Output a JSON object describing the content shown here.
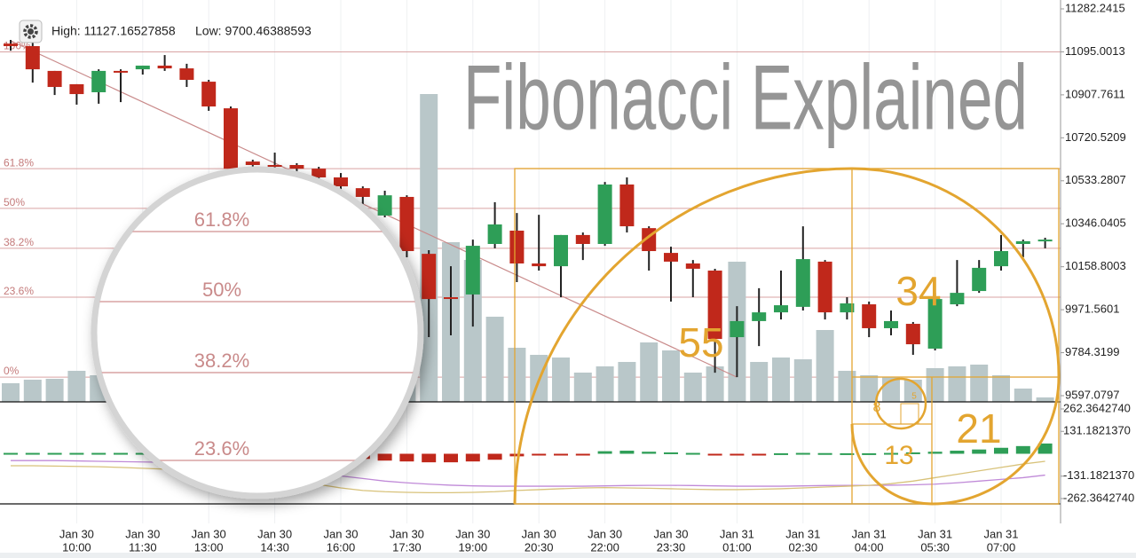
{
  "chart_data": {
    "type": "candlestick",
    "title": "Fibonacci Explained",
    "stats": [
      "High: 11127.16527858",
      "Low: 9700.46388593"
    ],
    "ylim": [
      9597.0797,
      11282.2415
    ],
    "yticks": [
      11282.2415,
      11095.0013,
      10907.7611,
      10720.5209,
      10533.2807,
      10346.0405,
      10158.8003,
      9971.5601,
      9784.3199,
      9597.0797
    ],
    "x_labels": [
      {
        "date": "Jan 30",
        "time": "10:00"
      },
      {
        "date": "Jan 30",
        "time": "11:30"
      },
      {
        "date": "Jan 30",
        "time": "13:00"
      },
      {
        "date": "Jan 30",
        "time": "14:30"
      },
      {
        "date": "Jan 30",
        "time": "16:00"
      },
      {
        "date": "Jan 30",
        "time": "17:30"
      },
      {
        "date": "Jan 30",
        "time": "19:00"
      },
      {
        "date": "Jan 30",
        "time": "20:30"
      },
      {
        "date": "Jan 30",
        "time": "22:00"
      },
      {
        "date": "Jan 30",
        "time": "23:30"
      },
      {
        "date": "Jan 31",
        "time": "01:00"
      },
      {
        "date": "Jan 31",
        "time": "02:30"
      },
      {
        "date": "Jan 31",
        "time": "04:00"
      },
      {
        "date": "Jan 31",
        "time": "05:30"
      },
      {
        "date": "Jan 31",
        "time": "07:00"
      }
    ],
    "up_color": "#2e9e57",
    "down_color": "#c0281b",
    "open": [
      11131,
      11120,
      11012,
      10954,
      10919,
      11012,
      11019,
      11035,
      11023,
      10965,
      10849,
      10617,
      10602,
      10602,
      10586,
      10548,
      10501,
      10382,
      10463,
      10215,
      10026,
      10038,
      10258,
      10316,
      10173,
      10161,
      10297,
      10258,
      10517,
      10327,
      10219,
      10173,
      10142,
      9852,
      9922,
      9960,
      9984,
      10181,
      9960,
      9995,
      9891,
      9910,
      9802,
      9995,
      10053,
      10161,
      10258,
      10273
    ],
    "high": [
      11147,
      11147,
      11012,
      10954,
      11019,
      11019,
      11035,
      11081,
      11043,
      10973,
      10857,
      10625,
      10656,
      10610,
      10594,
      10567,
      10509,
      10490,
      10470,
      10231,
      10161,
      10277,
      10440,
      10393,
      10385,
      10297,
      10308,
      10528,
      10548,
      10335,
      10246,
      10188,
      10150,
      9987,
      10065,
      10142,
      10335,
      10188,
      10026,
      10007,
      9968,
      9918,
      10045,
      10188,
      10188,
      10297,
      10277,
      10285
    ],
    "low": [
      11100,
      10961,
      10907,
      10865,
      10869,
      10876,
      10996,
      11012,
      10942,
      10838,
      10548,
      10586,
      10579,
      10567,
      10509,
      10478,
      10432,
      10374,
      10200,
      9852,
      9860,
      9898,
      10239,
      10092,
      10142,
      10026,
      10188,
      10250,
      10308,
      10142,
      10007,
      10026,
      9697,
      9678,
      9813,
      9929,
      9968,
      9929,
      9929,
      9852,
      9860,
      9775,
      9794,
      9987,
      10045,
      10142,
      10200,
      10239
    ],
    "close": [
      11120,
      11019,
      10942,
      10911,
      11012,
      11010,
      11035,
      11023,
      10973,
      10857,
      10586,
      10602,
      10594,
      10586,
      10548,
      10509,
      10463,
      10470,
      10227,
      10018,
      10022,
      10250,
      10343,
      10173,
      10161,
      10297,
      10258,
      10517,
      10335,
      10227,
      10181,
      10150,
      9844,
      9922,
      9960,
      9991,
      10192,
      9960,
      9999,
      9891,
      9922,
      9821,
      10018,
      10045,
      10154,
      10227,
      10270,
      10277
    ],
    "volume": [
      21,
      25,
      26,
      35,
      30,
      28,
      30,
      28,
      26,
      25,
      30,
      32,
      30,
      28,
      30,
      32,
      35,
      40,
      55,
      347,
      180,
      160,
      96,
      61,
      53,
      50,
      33,
      40,
      45,
      67,
      58,
      33,
      40,
      158,
      45,
      50,
      48,
      81,
      35,
      30,
      28,
      25,
      38,
      40,
      42,
      30,
      15,
      5
    ],
    "volume_color": "#b9c7c9",
    "fib_levels": [
      {
        "label": "100%",
        "price": 11095
      },
      {
        "label": "61.8%",
        "price": 10586
      },
      {
        "label": "50%",
        "price": 10413
      },
      {
        "label": "38.2%",
        "price": 10239
      },
      {
        "label": "23.6%",
        "price": 10026
      },
      {
        "label": "0%",
        "price": 9678
      }
    ],
    "fib_color": "#d9a3a3",
    "magnifier_labels": [
      "61.8%",
      "50%",
      "38.2%",
      "23.6%"
    ],
    "spiral_labels": [
      55,
      34,
      21,
      13,
      8,
      5
    ],
    "spiral_color": "#e3a530",
    "indicator": {
      "y2lim": [
        -262.364274,
        262.364274
      ],
      "y2ticks": [
        {
          "value": 262.364274,
          "label": "262.3642740"
        },
        {
          "value": 131.182137,
          "label": "131.1821370"
        },
        {
          "value": -131.182137,
          "label": "-131.1821370"
        },
        {
          "value": -262.364274,
          "label": "-262.3642740"
        }
      ],
      "histogram": [
        5,
        5,
        5,
        5,
        5,
        5,
        5,
        5,
        5,
        5,
        5,
        5,
        5,
        5,
        -10,
        -20,
        -30,
        -40,
        -45,
        -50,
        -50,
        -45,
        -35,
        -15,
        -8,
        -5,
        -3,
        15,
        18,
        12,
        8,
        5,
        -3,
        -5,
        -3,
        3,
        5,
        4,
        3,
        3,
        5,
        8,
        12,
        18,
        25,
        35,
        45,
        60
      ],
      "lines": [
        {
          "color": "#c08ad8",
          "values": [
            -40,
            -40,
            -40,
            -42,
            -44,
            -46,
            -48,
            -50,
            -52,
            -55,
            -60,
            -70,
            -85,
            -100,
            -115,
            -130,
            -145,
            -160,
            -170,
            -178,
            -184,
            -188,
            -190,
            -190,
            -190,
            -190,
            -190,
            -188,
            -186,
            -185,
            -185,
            -186,
            -188,
            -190,
            -190,
            -190,
            -188,
            -186,
            -185,
            -185,
            -184,
            -182,
            -178,
            -170,
            -160,
            -150,
            -140,
            -125
          ]
        },
        {
          "color": "#d8c27a",
          "values": [
            -70,
            -70,
            -72,
            -74,
            -76,
            -80,
            -85,
            -90,
            -95,
            -100,
            -110,
            -125,
            -140,
            -160,
            -180,
            -200,
            -215,
            -222,
            -226,
            -228,
            -228,
            -226,
            -222,
            -215,
            -210,
            -205,
            -200,
            -198,
            -200,
            -202,
            -205,
            -208,
            -210,
            -210,
            -208,
            -205,
            -200,
            -195,
            -190,
            -185,
            -175,
            -160,
            -140,
            -120,
            -100,
            -80,
            -60,
            -44
          ]
        }
      ]
    }
  }
}
